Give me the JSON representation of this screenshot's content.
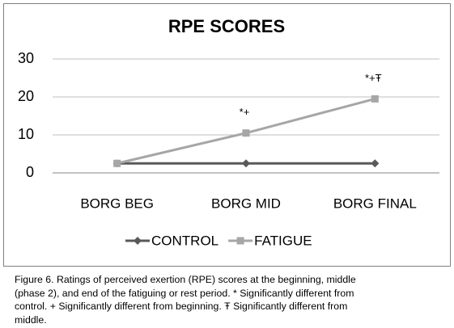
{
  "chart_data": {
    "type": "line",
    "title": "RPE SCORES",
    "categories": [
      "BORG BEG",
      "BORG MID",
      "BORG FINAL"
    ],
    "series": [
      {
        "name": "CONTROL",
        "color": "#595959",
        "marker": "diamond",
        "values": [
          2.5,
          2.5,
          2.5
        ]
      },
      {
        "name": "FATIGUE",
        "color": "#a6a6a6",
        "marker": "square",
        "values": [
          2.5,
          10.5,
          19.5
        ],
        "annotations": [
          null,
          "*+",
          "*+Ŧ"
        ]
      }
    ],
    "ylim": [
      0,
      30
    ],
    "yticks": [
      0,
      10,
      20,
      30
    ],
    "grid": true,
    "legend": "bottom"
  },
  "caption": [
    "Figure 6. Ratings of perceived exertion (RPE) scores at the beginning, middle",
    "(phase 2), and end of the fatiguing or rest period. * Significantly different from",
    "control. + Significantly different from beginning. Ŧ Significantly different from",
    "middle."
  ]
}
